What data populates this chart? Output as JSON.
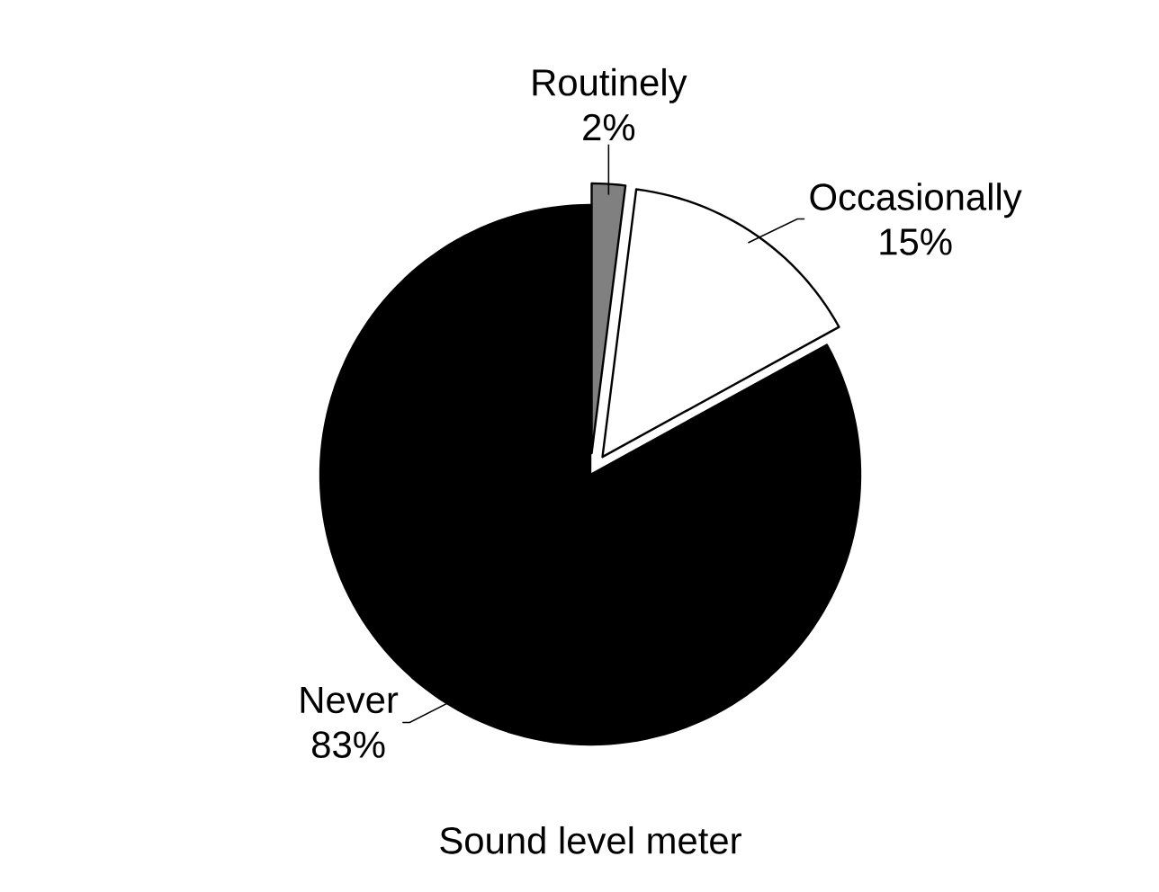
{
  "chart_data": {
    "type": "pie",
    "title": "Sound level meter",
    "categories": [
      "Routinely",
      "Occasionally",
      "Never"
    ],
    "values": [
      2,
      15,
      83
    ],
    "colors": [
      "#808080",
      "#ffffff",
      "#000000"
    ],
    "value_labels": [
      "2%",
      "15%",
      "83%"
    ]
  }
}
